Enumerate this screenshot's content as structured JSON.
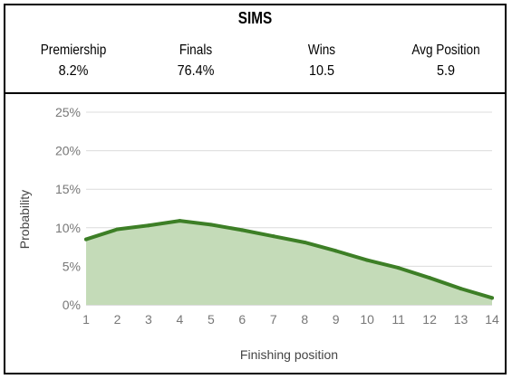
{
  "header": {
    "title": "SIMS",
    "stats": [
      {
        "label": "Premiership",
        "value": "8.2%"
      },
      {
        "label": "Finals",
        "value": "76.4%"
      },
      {
        "label": "Wins",
        "value": "10.5"
      },
      {
        "label": "Avg Position",
        "value": "5.9"
      }
    ]
  },
  "chart_data": {
    "type": "area",
    "x": [
      1,
      2,
      3,
      4,
      5,
      6,
      7,
      8,
      9,
      10,
      11,
      12,
      13,
      14
    ],
    "series": [
      {
        "values": [
          8.5,
          9.8,
          10.3,
          10.9,
          10.4,
          9.7,
          8.9,
          8.1,
          7.0,
          5.8,
          4.8,
          3.5,
          2.1,
          0.9
        ]
      }
    ],
    "xlabel": "Finishing position",
    "ylabel": "Probability",
    "ylim": [
      0,
      25
    ],
    "yticks": [
      "0%",
      "5%",
      "10%",
      "15%",
      "20%",
      "25%"
    ],
    "grid": true,
    "colors": {
      "line": "#3d7f26",
      "fill": "#c4dbb8",
      "grid": "#dcdcdc"
    }
  }
}
